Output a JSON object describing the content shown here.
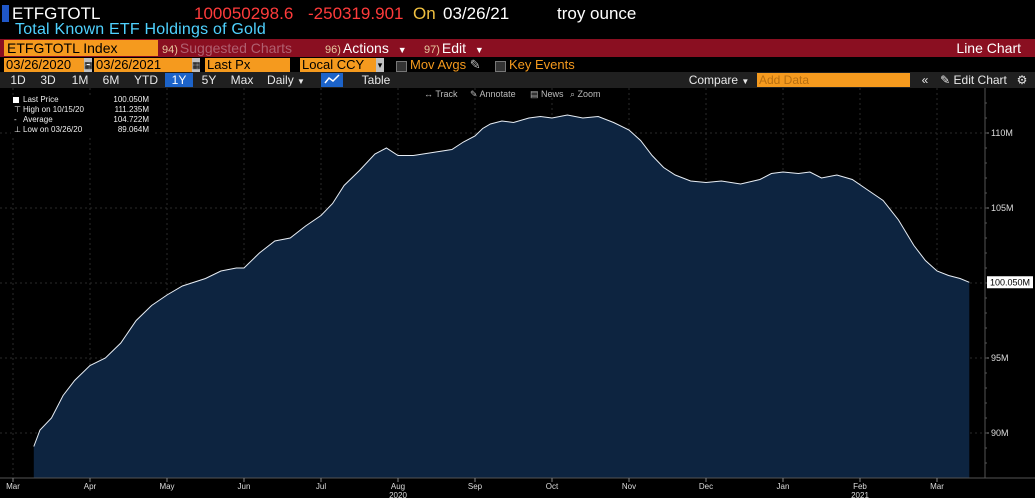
{
  "header": {
    "ticker": "ETFGTOTL",
    "last": "100050298.6",
    "change": "-250319.901",
    "on_label": "On",
    "date": "03/26/21",
    "unit": "troy ounce",
    "description": "Total Known ETF Holdings of Gold"
  },
  "toolbar": {
    "index_label": "ETFGTOTL Index",
    "suggested_num": "94)",
    "suggested_label": "Suggested Charts",
    "actions_num": "96)",
    "actions_label": "Actions",
    "edit_num": "97)",
    "edit_label": "Edit",
    "chart_type_label": "Line Chart"
  },
  "controls": {
    "date_from": "03/26/2020",
    "date_to": "03/26/2021",
    "field": "Last Px",
    "currency": "Local CCY",
    "mov_avgs": "Mov Avgs",
    "key_events": "Key Events",
    "ranges": [
      "1D",
      "3D",
      "1M",
      "6M",
      "YTD",
      "1Y",
      "5Y",
      "Max"
    ],
    "active_range": "1Y",
    "frequency": "Daily",
    "table_label": "Table",
    "compare_label": "Compare",
    "add_data_placeholder": "Add Data",
    "edit_chart_label": "Edit Chart"
  },
  "chart_tools": {
    "track": "Track",
    "annotate": "Annotate",
    "news": "News",
    "zoom": "Zoom"
  },
  "legend": {
    "rows": [
      {
        "label": "Last Price",
        "value": "100.050M"
      },
      {
        "label": "High on 10/15/20",
        "value": "111.235M"
      },
      {
        "label": "Average",
        "value": "104.722M"
      },
      {
        "label": "Low on 03/26/20",
        "value": "89.064M"
      }
    ]
  },
  "colors": {
    "area_fill": "#0d2440",
    "line": "#e8eef5",
    "accent_orange": "#f59a1e",
    "header_red": "#8a0f21",
    "negative": "#ff3b3b",
    "description": "#4fd2ff"
  },
  "chart_data": {
    "type": "area",
    "title": "Total Known ETF Holdings of Gold",
    "xlabel": "",
    "ylabel": "",
    "ylim": [
      87,
      113
    ],
    "yticks": [
      90,
      95,
      100,
      105,
      110
    ],
    "ytick_labels": [
      "90M",
      "95M",
      "100M",
      "105M",
      "110M"
    ],
    "last_value_label": "100.050M",
    "x_ticks": [
      {
        "t": 0,
        "label": "Mar"
      },
      {
        "t": 1,
        "label": "Apr"
      },
      {
        "t": 2,
        "label": "May"
      },
      {
        "t": 3,
        "label": "Jun"
      },
      {
        "t": 4,
        "label": "Jul"
      },
      {
        "t": 5,
        "label": "Aug"
      },
      {
        "t": 6,
        "label": "Sep"
      },
      {
        "t": 7,
        "label": "Oct"
      },
      {
        "t": 8,
        "label": "Nov"
      },
      {
        "t": 9,
        "label": "Dec"
      },
      {
        "t": 10,
        "label": "Jan"
      },
      {
        "t": 11,
        "label": "Feb"
      },
      {
        "t": 12,
        "label": "Mar"
      }
    ],
    "year_labels": [
      {
        "t": 5,
        "label": "2020"
      },
      {
        "t": 11,
        "label": "2021"
      }
    ],
    "grid": true,
    "series": [
      {
        "values_unit": "M troy oz",
        "points": [
          [
            0.27,
            89.1
          ],
          [
            0.35,
            90.2
          ],
          [
            0.5,
            91.0
          ],
          [
            0.65,
            92.5
          ],
          [
            0.8,
            93.5
          ],
          [
            1.0,
            94.5
          ],
          [
            1.2,
            95.0
          ],
          [
            1.4,
            96.0
          ],
          [
            1.6,
            97.5
          ],
          [
            1.8,
            98.5
          ],
          [
            2.0,
            99.2
          ],
          [
            2.2,
            99.8
          ],
          [
            2.5,
            100.3
          ],
          [
            2.7,
            100.8
          ],
          [
            2.9,
            101.0
          ],
          [
            3.0,
            101.0
          ],
          [
            3.2,
            102.0
          ],
          [
            3.4,
            102.8
          ],
          [
            3.6,
            103.0
          ],
          [
            3.8,
            103.8
          ],
          [
            4.0,
            104.5
          ],
          [
            4.15,
            105.3
          ],
          [
            4.3,
            106.5
          ],
          [
            4.5,
            107.5
          ],
          [
            4.7,
            108.6
          ],
          [
            4.85,
            109.0
          ],
          [
            5.0,
            108.5
          ],
          [
            5.2,
            108.5
          ],
          [
            5.45,
            108.7
          ],
          [
            5.7,
            108.9
          ],
          [
            5.85,
            109.4
          ],
          [
            6.0,
            109.8
          ],
          [
            6.1,
            110.3
          ],
          [
            6.2,
            110.6
          ],
          [
            6.35,
            110.8
          ],
          [
            6.5,
            110.7
          ],
          [
            6.7,
            111.0
          ],
          [
            6.85,
            111.1
          ],
          [
            7.0,
            111.0
          ],
          [
            7.2,
            111.2
          ],
          [
            7.4,
            111.0
          ],
          [
            7.6,
            111.1
          ],
          [
            7.8,
            110.7
          ],
          [
            8.0,
            110.2
          ],
          [
            8.15,
            109.5
          ],
          [
            8.3,
            108.5
          ],
          [
            8.45,
            107.7
          ],
          [
            8.6,
            107.2
          ],
          [
            8.8,
            106.8
          ],
          [
            9.0,
            106.7
          ],
          [
            9.2,
            106.8
          ],
          [
            9.45,
            106.6
          ],
          [
            9.7,
            106.9
          ],
          [
            9.85,
            107.3
          ],
          [
            10.0,
            107.4
          ],
          [
            10.2,
            107.3
          ],
          [
            10.35,
            107.4
          ],
          [
            10.5,
            107.0
          ],
          [
            10.7,
            107.2
          ],
          [
            10.9,
            106.9
          ],
          [
            11.1,
            106.2
          ],
          [
            11.3,
            105.5
          ],
          [
            11.5,
            104.2
          ],
          [
            11.7,
            102.5
          ],
          [
            11.85,
            101.5
          ],
          [
            12.0,
            100.8
          ],
          [
            12.15,
            100.5
          ],
          [
            12.3,
            100.3
          ],
          [
            12.42,
            100.05
          ]
        ]
      }
    ]
  }
}
